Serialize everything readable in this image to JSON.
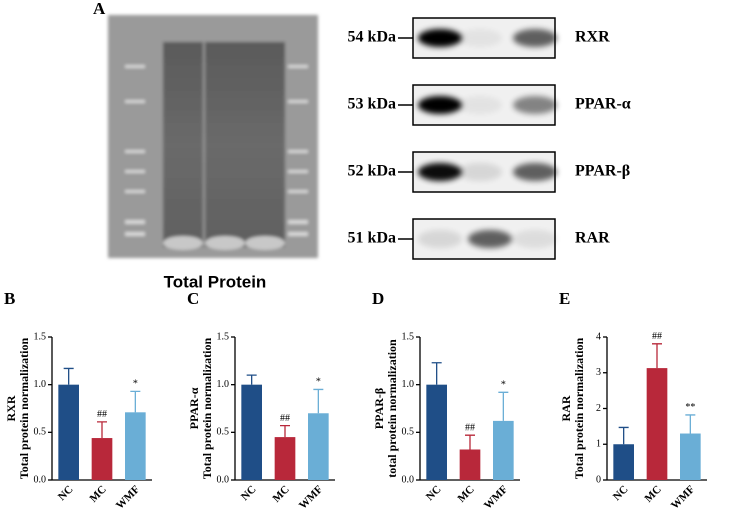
{
  "blot": {
    "panel": "A",
    "gel_label": "Total Protein",
    "rows": [
      {
        "weight": "54 kDa",
        "target": "RXR"
      },
      {
        "weight": "53 kDa",
        "target": "PPAR-α"
      },
      {
        "weight": "52 kDa",
        "target": "PPAR-β"
      },
      {
        "weight": "51 kDa",
        "target": "RAR"
      }
    ]
  },
  "chart_data": [
    {
      "type": "bar",
      "panel": "B",
      "ylabel": [
        "RXR",
        "Total protein normalization"
      ],
      "categories": [
        "NC",
        "MC",
        "WMF"
      ],
      "colors": [
        "#1f4e87",
        "#b8283a",
        "#6aaed6"
      ],
      "values": [
        1.0,
        0.44,
        0.71
      ],
      "errors": [
        0.17,
        0.17,
        0.22
      ],
      "value_annotations": [
        null,
        "##",
        "*"
      ],
      "ylim": [
        0,
        1.5
      ],
      "yticks": [
        {
          "value": 0,
          "label": "0.0"
        },
        0.5,
        {
          "value": 1,
          "label": "1.0"
        },
        1.5
      ]
    },
    {
      "type": "bar",
      "panel": "C",
      "ylabel": [
        "PPAR-α",
        "Total protein normalization"
      ],
      "categories": [
        "NC",
        "MC",
        "WMF"
      ],
      "colors": [
        "#1f4e87",
        "#b8283a",
        "#6aaed6"
      ],
      "values": [
        1.0,
        0.45,
        0.7
      ],
      "errors": [
        0.1,
        0.12,
        0.25
      ],
      "value_annotations": [
        null,
        "##",
        "*"
      ],
      "ylim": [
        0,
        1.5
      ],
      "yticks": [
        {
          "value": 0,
          "label": "0.0"
        },
        0.5,
        {
          "value": 1,
          "label": "1.0"
        },
        1.5
      ]
    },
    {
      "type": "bar",
      "panel": "D",
      "ylabel": [
        "PPAR-β",
        "total protein normalization"
      ],
      "categories": [
        "NC",
        "MC",
        "WMF"
      ],
      "colors": [
        "#1f4e87",
        "#b8283a",
        "#6aaed6"
      ],
      "values": [
        1.0,
        0.32,
        0.62
      ],
      "errors": [
        0.23,
        0.15,
        0.3
      ],
      "value_annotations": [
        null,
        "##",
        "*"
      ],
      "ylim": [
        0,
        1.5
      ],
      "yticks": [
        {
          "value": 0,
          "label": "0.0"
        },
        0.5,
        {
          "value": 1,
          "label": "1.0"
        },
        1.5
      ]
    },
    {
      "type": "bar",
      "panel": "E",
      "ylabel": [
        "RAR",
        "Total protein normalization"
      ],
      "categories": [
        "NC",
        "MC",
        "WMF"
      ],
      "colors": [
        "#1f4e87",
        "#b8283a",
        "#6aaed6"
      ],
      "values": [
        1.0,
        3.13,
        1.3
      ],
      "errors": [
        0.47,
        0.68,
        0.52
      ],
      "value_annotations": [
        null,
        "##",
        "**"
      ],
      "ylim": [
        0,
        4
      ],
      "yticks": [
        0,
        1,
        2,
        3,
        4
      ]
    }
  ]
}
